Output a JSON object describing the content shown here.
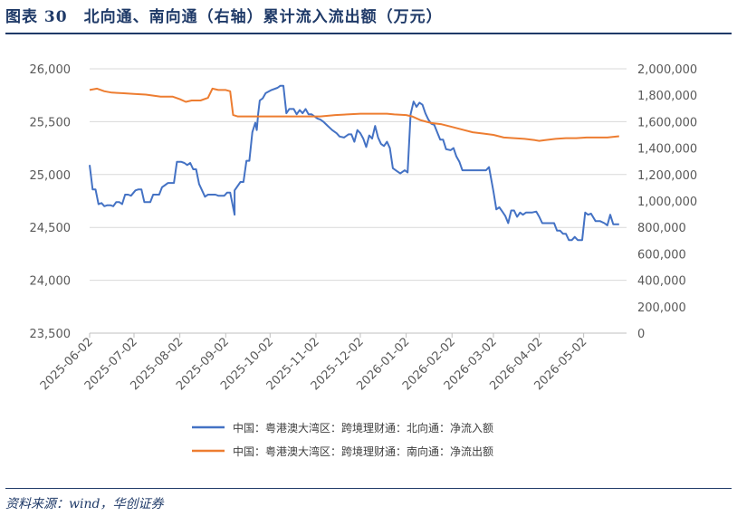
{
  "figure": {
    "title": "图表 30　北向通、南向通（右轴）累计流入流出额（万元）",
    "source": "资料来源：wind，华创证券"
  },
  "chart_data": {
    "type": "line",
    "x_ticks": [
      "2025-06-02",
      "2025-07-02",
      "2025-08-02",
      "2025-09-02",
      "2025-10-02",
      "2025-11-02",
      "2025-12-02",
      "2026-01-02",
      "2026-02-02",
      "2026-03-02",
      "2026-04-02",
      "2026-05-02"
    ],
    "xlim": [
      "2025-06-02",
      "2026-05-31"
    ],
    "ylim_left": [
      23500,
      26000
    ],
    "yticks_left": [
      "23,500",
      "24,000",
      "24,500",
      "25,000",
      "25,500",
      "26,000"
    ],
    "ylim_right": [
      0,
      2000000
    ],
    "yticks_right": [
      "0",
      "200,000",
      "400,000",
      "600,000",
      "800,000",
      "1,000,000",
      "1,200,000",
      "1,400,000",
      "1,600,000",
      "1,800,000",
      "2,000,000"
    ],
    "grid": true,
    "legend_position": "bottom",
    "series": [
      {
        "name": "中国：粤港澳大湾区：跨境理财通：北向通：净流入额",
        "axis": "left",
        "color": "#4472c4",
        "points": [
          [
            "2025-06-02",
            25090
          ],
          [
            "2025-06-04",
            24860
          ],
          [
            "2025-06-06",
            24860
          ],
          [
            "2025-06-08",
            24720
          ],
          [
            "2025-06-10",
            24730
          ],
          [
            "2025-06-12",
            24700
          ],
          [
            "2025-06-14",
            24710
          ],
          [
            "2025-06-16",
            24710
          ],
          [
            "2025-06-18",
            24700
          ],
          [
            "2025-06-20",
            24740
          ],
          [
            "2025-06-22",
            24740
          ],
          [
            "2025-06-24",
            24720
          ],
          [
            "2025-06-26",
            24810
          ],
          [
            "2025-06-28",
            24810
          ],
          [
            "2025-06-30",
            24800
          ],
          [
            "2025-07-03",
            24850
          ],
          [
            "2025-07-05",
            24860
          ],
          [
            "2025-07-07",
            24860
          ],
          [
            "2025-07-09",
            24740
          ],
          [
            "2025-07-13",
            24740
          ],
          [
            "2025-07-15",
            24810
          ],
          [
            "2025-07-19",
            24810
          ],
          [
            "2025-07-21",
            24880
          ],
          [
            "2025-07-23",
            24900
          ],
          [
            "2025-07-25",
            24920
          ],
          [
            "2025-07-27",
            24920
          ],
          [
            "2025-07-29",
            24920
          ],
          [
            "2025-07-31",
            25120
          ],
          [
            "2025-08-03",
            25120
          ],
          [
            "2025-08-05",
            25110
          ],
          [
            "2025-08-07",
            25090
          ],
          [
            "2025-08-09",
            25110
          ],
          [
            "2025-08-11",
            25050
          ],
          [
            "2025-08-13",
            25050
          ],
          [
            "2025-08-15",
            24910
          ],
          [
            "2025-08-19",
            24790
          ],
          [
            "2025-08-21",
            24810
          ],
          [
            "2025-08-26",
            24810
          ],
          [
            "2025-08-28",
            24800
          ],
          [
            "2025-08-30",
            24800
          ],
          [
            "2025-09-01",
            24800
          ],
          [
            "2025-09-03",
            24830
          ],
          [
            "2025-09-05",
            24830
          ],
          [
            "2025-09-08",
            24620
          ],
          [
            "2025-09-08",
            24850
          ],
          [
            "2025-09-12",
            24930
          ],
          [
            "2025-09-14",
            24930
          ],
          [
            "2025-09-16",
            25130
          ],
          [
            "2025-09-18",
            25130
          ],
          [
            "2025-09-20",
            25400
          ],
          [
            "2025-09-22",
            25490
          ],
          [
            "2025-09-23",
            25420
          ],
          [
            "2025-09-24",
            25580
          ],
          [
            "2025-09-25",
            25700
          ],
          [
            "2025-09-27",
            25720
          ],
          [
            "2025-09-29",
            25770
          ],
          [
            "2025-10-03",
            25800
          ],
          [
            "2025-10-07",
            25820
          ],
          [
            "2025-10-09",
            25840
          ],
          [
            "2025-10-11",
            25840
          ],
          [
            "2025-10-13",
            25580
          ],
          [
            "2025-10-15",
            25620
          ],
          [
            "2025-10-18",
            25620
          ],
          [
            "2025-10-20",
            25570
          ],
          [
            "2025-10-22",
            25610
          ],
          [
            "2025-10-24",
            25580
          ],
          [
            "2025-10-26",
            25620
          ],
          [
            "2025-10-28",
            25570
          ],
          [
            "2025-10-30",
            25570
          ],
          [
            "2025-11-03",
            25530
          ],
          [
            "2025-11-05",
            25520
          ],
          [
            "2025-11-07",
            25500
          ],
          [
            "2025-11-10",
            25460
          ],
          [
            "2025-11-13",
            25420
          ],
          [
            "2025-11-16",
            25390
          ],
          [
            "2025-11-18",
            25360
          ],
          [
            "2025-11-21",
            25350
          ],
          [
            "2025-11-24",
            25380
          ],
          [
            "2025-11-26",
            25380
          ],
          [
            "2025-11-28",
            25310
          ],
          [
            "2025-11-30",
            25420
          ],
          [
            "2025-12-02",
            25390
          ],
          [
            "2025-12-04",
            25340
          ],
          [
            "2025-12-06",
            25260
          ],
          [
            "2025-12-08",
            25370
          ],
          [
            "2025-12-10",
            25340
          ],
          [
            "2025-12-12",
            25460
          ],
          [
            "2025-12-14",
            25350
          ],
          [
            "2025-12-16",
            25290
          ],
          [
            "2025-12-18",
            25270
          ],
          [
            "2025-12-20",
            25310
          ],
          [
            "2025-12-22",
            25250
          ],
          [
            "2025-12-24",
            25060
          ],
          [
            "2025-12-27",
            25030
          ],
          [
            "2025-12-29",
            25010
          ],
          [
            "2026-01-01",
            25040
          ],
          [
            "2026-01-03",
            25020
          ],
          [
            "2026-01-05",
            25570
          ],
          [
            "2026-01-07",
            25690
          ],
          [
            "2026-01-09",
            25640
          ],
          [
            "2026-01-11",
            25680
          ],
          [
            "2026-01-13",
            25660
          ],
          [
            "2026-01-15",
            25580
          ],
          [
            "2026-01-17",
            25520
          ],
          [
            "2026-01-19",
            25480
          ],
          [
            "2026-01-21",
            25470
          ],
          [
            "2026-01-23",
            25400
          ],
          [
            "2026-01-25",
            25330
          ],
          [
            "2026-01-27",
            25330
          ],
          [
            "2026-01-29",
            25240
          ],
          [
            "2026-02-01",
            25230
          ],
          [
            "2026-02-03",
            25250
          ],
          [
            "2026-02-05",
            25170
          ],
          [
            "2026-02-07",
            25120
          ],
          [
            "2026-02-09",
            25040
          ],
          [
            "2026-02-14",
            25040
          ],
          [
            "2026-02-21",
            25040
          ],
          [
            "2026-02-25",
            25040
          ],
          [
            "2026-02-27",
            25070
          ],
          [
            "2026-03-02",
            24840
          ],
          [
            "2026-03-04",
            24670
          ],
          [
            "2026-03-06",
            24690
          ],
          [
            "2026-03-08",
            24650
          ],
          [
            "2026-03-10",
            24610
          ],
          [
            "2026-03-12",
            24540
          ],
          [
            "2026-03-14",
            24660
          ],
          [
            "2026-03-16",
            24660
          ],
          [
            "2026-03-18",
            24600
          ],
          [
            "2026-03-20",
            24640
          ],
          [
            "2026-03-22",
            24620
          ],
          [
            "2026-03-24",
            24640
          ],
          [
            "2026-03-28",
            24640
          ],
          [
            "2026-03-31",
            24650
          ],
          [
            "2026-04-02",
            24600
          ],
          [
            "2026-04-04",
            24540
          ],
          [
            "2026-04-08",
            24540
          ],
          [
            "2026-04-12",
            24540
          ],
          [
            "2026-04-14",
            24470
          ],
          [
            "2026-04-16",
            24470
          ],
          [
            "2026-04-18",
            24440
          ],
          [
            "2026-04-20",
            24440
          ],
          [
            "2026-04-22",
            24380
          ],
          [
            "2026-04-24",
            24380
          ],
          [
            "2026-04-26",
            24410
          ],
          [
            "2026-04-28",
            24380
          ],
          [
            "2026-05-01",
            24380
          ],
          [
            "2026-05-03",
            24640
          ],
          [
            "2026-05-05",
            24620
          ],
          [
            "2026-05-07",
            24630
          ],
          [
            "2026-05-10",
            24560
          ],
          [
            "2026-05-13",
            24560
          ],
          [
            "2026-05-16",
            24540
          ],
          [
            "2026-05-18",
            24520
          ],
          [
            "2026-05-20",
            24620
          ],
          [
            "2026-05-22",
            24530
          ],
          [
            "2026-05-26",
            24530
          ]
        ]
      },
      {
        "name": "中国：粤港澳大湾区：跨境理财通：南向通：净流出额",
        "axis": "right",
        "color": "#ed7d31",
        "points": [
          [
            "2025-06-02",
            1840000
          ],
          [
            "2025-06-07",
            1850000
          ],
          [
            "2025-06-12",
            1830000
          ],
          [
            "2025-06-17",
            1820000
          ],
          [
            "2025-06-25",
            1815000
          ],
          [
            "2025-07-02",
            1810000
          ],
          [
            "2025-07-10",
            1805000
          ],
          [
            "2025-07-20",
            1790000
          ],
          [
            "2025-07-28",
            1790000
          ],
          [
            "2025-08-02",
            1770000
          ],
          [
            "2025-08-06",
            1750000
          ],
          [
            "2025-08-10",
            1760000
          ],
          [
            "2025-08-16",
            1760000
          ],
          [
            "2025-08-21",
            1780000
          ],
          [
            "2025-08-24",
            1850000
          ],
          [
            "2025-08-28",
            1840000
          ],
          [
            "2025-09-02",
            1840000
          ],
          [
            "2025-09-05",
            1830000
          ],
          [
            "2025-09-07",
            1650000
          ],
          [
            "2025-09-10",
            1640000
          ],
          [
            "2025-09-15",
            1640000
          ],
          [
            "2025-10-02",
            1640000
          ],
          [
            "2025-10-10",
            1640000
          ],
          [
            "2025-10-22",
            1640000
          ],
          [
            "2025-11-05",
            1640000
          ],
          [
            "2025-11-15",
            1650000
          ],
          [
            "2025-12-02",
            1660000
          ],
          [
            "2025-12-20",
            1660000
          ],
          [
            "2025-12-25",
            1655000
          ],
          [
            "2026-01-02",
            1650000
          ],
          [
            "2026-01-06",
            1640000
          ],
          [
            "2026-01-12",
            1610000
          ],
          [
            "2026-01-19",
            1590000
          ],
          [
            "2026-01-26",
            1580000
          ],
          [
            "2026-02-02",
            1560000
          ],
          [
            "2026-02-09",
            1540000
          ],
          [
            "2026-02-16",
            1520000
          ],
          [
            "2026-02-23",
            1510000
          ],
          [
            "2026-03-02",
            1500000
          ],
          [
            "2026-03-09",
            1480000
          ],
          [
            "2026-03-16",
            1475000
          ],
          [
            "2026-03-23",
            1470000
          ],
          [
            "2026-03-30",
            1460000
          ],
          [
            "2026-04-02",
            1455000
          ],
          [
            "2026-04-06",
            1460000
          ],
          [
            "2026-04-13",
            1470000
          ],
          [
            "2026-04-20",
            1475000
          ],
          [
            "2026-04-27",
            1475000
          ],
          [
            "2026-05-04",
            1480000
          ],
          [
            "2026-05-11",
            1480000
          ],
          [
            "2026-05-18",
            1480000
          ],
          [
            "2026-05-26",
            1490000
          ]
        ]
      }
    ]
  }
}
